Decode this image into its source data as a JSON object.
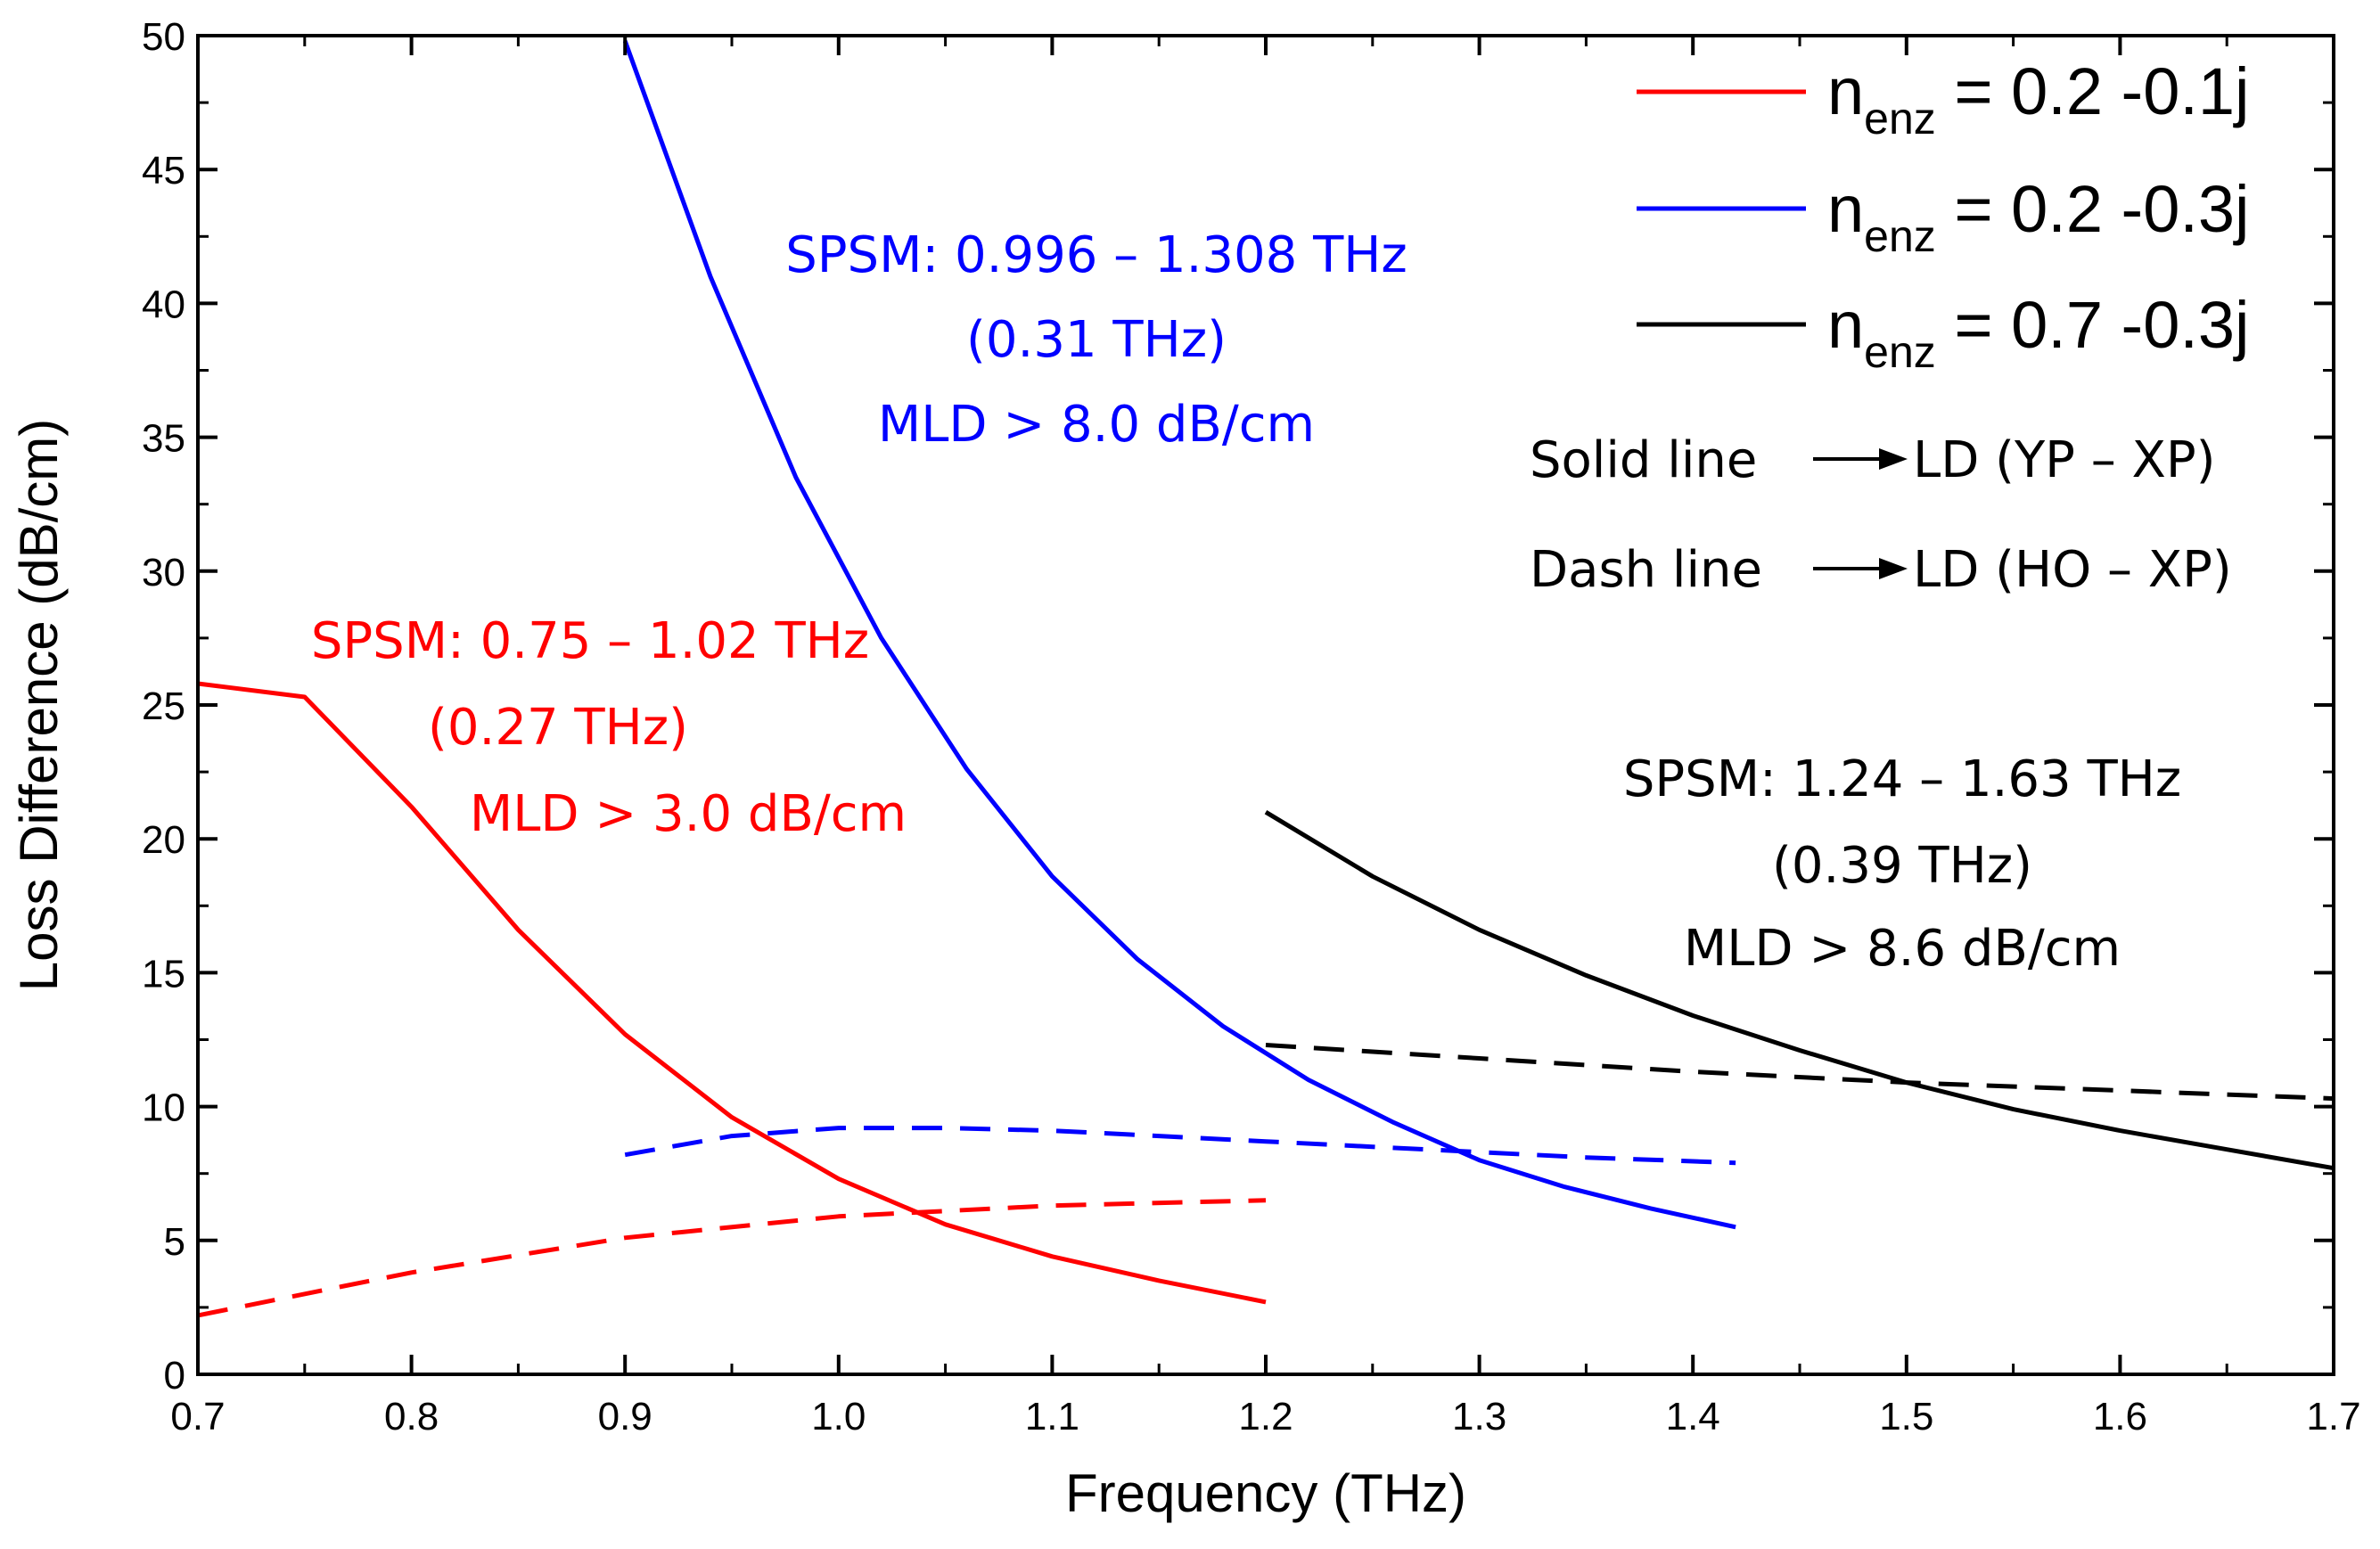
{
  "chart_data": {
    "type": "line",
    "xlabel": "Frequency (THz)",
    "ylabel": "Loss Difference (dB/cm)",
    "xlim": [
      0.7,
      1.7
    ],
    "ylim": [
      0,
      50
    ],
    "xticks": [
      "0.7",
      "0.8",
      "0.9",
      "1.0",
      "1.1",
      "1.2",
      "1.3",
      "1.4",
      "1.5",
      "1.6",
      "1.7"
    ],
    "yticks": [
      "0",
      "5",
      "10",
      "15",
      "20",
      "25",
      "30",
      "35",
      "40",
      "45",
      "50"
    ],
    "colors": {
      "red": "#ff0000",
      "blue": "#0000ff",
      "black": "#000000"
    },
    "series": [
      {
        "name": "red-solid",
        "color": "#ff0000",
        "style": "solid",
        "x": [
          0.7,
          0.75,
          0.8,
          0.85,
          0.9,
          0.95,
          1.0,
          1.05,
          1.1,
          1.15,
          1.2
        ],
        "y": [
          25.8,
          25.3,
          21.2,
          16.6,
          12.7,
          9.6,
          7.3,
          5.6,
          4.4,
          3.5,
          2.7
        ]
      },
      {
        "name": "red-dash",
        "color": "#ff0000",
        "style": "dash",
        "x": [
          0.7,
          0.8,
          0.9,
          1.0,
          1.1,
          1.2
        ],
        "y": [
          2.2,
          3.8,
          5.1,
          5.9,
          6.3,
          6.5
        ]
      },
      {
        "name": "blue-solid",
        "color": "#0000ff",
        "style": "solid",
        "x": [
          0.9,
          0.94,
          0.98,
          1.02,
          1.06,
          1.1,
          1.14,
          1.18,
          1.22,
          1.26,
          1.3,
          1.34,
          1.38,
          1.42
        ],
        "y": [
          49.8,
          41.0,
          33.5,
          27.5,
          22.6,
          18.6,
          15.5,
          13.0,
          11.0,
          9.4,
          8.0,
          7.0,
          6.2,
          5.5
        ]
      },
      {
        "name": "blue-dash",
        "color": "#0000ff",
        "style": "dash",
        "x": [
          0.9,
          0.95,
          1.0,
          1.05,
          1.1,
          1.15,
          1.2,
          1.25,
          1.3,
          1.35,
          1.42
        ],
        "y": [
          8.2,
          8.9,
          9.2,
          9.2,
          9.1,
          8.9,
          8.7,
          8.5,
          8.3,
          8.1,
          7.9
        ]
      },
      {
        "name": "black-solid",
        "color": "#000000",
        "style": "solid",
        "x": [
          1.2,
          1.25,
          1.3,
          1.35,
          1.4,
          1.45,
          1.5,
          1.55,
          1.6,
          1.65,
          1.7
        ],
        "y": [
          21.0,
          18.6,
          16.6,
          14.9,
          13.4,
          12.1,
          10.9,
          9.9,
          9.1,
          8.4,
          7.7
        ]
      },
      {
        "name": "black-dash",
        "color": "#000000",
        "style": "dash",
        "x": [
          1.2,
          1.3,
          1.4,
          1.5,
          1.6,
          1.7
        ],
        "y": [
          12.3,
          11.8,
          11.3,
          10.9,
          10.6,
          10.3
        ]
      }
    ],
    "legend": [
      {
        "color": "#ff0000",
        "prefix": "n",
        "sub": "enz",
        "value": " = 0.2 -0.1j"
      },
      {
        "color": "#0000ff",
        "prefix": "n",
        "sub": "enz",
        "value": " = 0.2 -0.3j"
      },
      {
        "color": "#000000",
        "prefix": "n",
        "sub": "enz",
        "value": " = 0.7 -0.3j"
      }
    ],
    "notes": [
      {
        "text": "Solid line",
        "arrow_to": "LD (YP – XP)"
      },
      {
        "text": "Dash line",
        "arrow_to": "LD (HO – XP)"
      }
    ],
    "annotations": [
      {
        "color": "#0000ff",
        "lines": [
          "SPSM: 0.996 – 1.308 THz",
          "(0.31 THz)",
          "MLD > 8.0 dB/cm"
        ]
      },
      {
        "color": "#ff0000",
        "lines": [
          "SPSM: 0.75 – 1.02 THz",
          "(0.27 THz)",
          "MLD > 3.0 dB/cm"
        ]
      },
      {
        "color": "#000000",
        "lines": [
          "SPSM: 1.24 – 1.63 THz",
          "(0.39 THz)",
          "MLD > 8.6 dB/cm"
        ]
      }
    ]
  }
}
